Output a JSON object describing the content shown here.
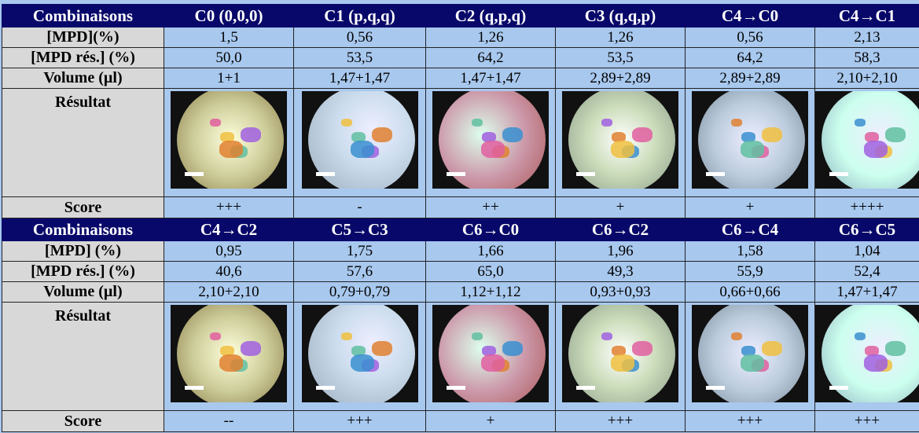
{
  "table": {
    "rows": [
      [
        "Combinaisons",
        "C0 (0,0,0)",
        "C1 (p,q,q)",
        "C2 (q,p,q)",
        "C3 (q,q,p)",
        "C4→C0",
        "C4→C1"
      ],
      [
        "[MPD](%)",
        "1,5",
        "0,56",
        "1,26",
        "1,26",
        "0,56",
        "2,13"
      ],
      [
        "[MPD rés.] (%)",
        "50,0",
        "53,5",
        "64,2",
        "53,5",
        "64,2",
        "58,3"
      ],
      [
        "Volume (µl)",
        "1+1",
        "1,47+1,47",
        "1,47+1,47",
        "2,89+2,89",
        "2,89+2,89",
        "2,10+2,10"
      ],
      [
        "Résultat"
      ],
      [
        "Score",
        "+++",
        "-",
        "++",
        "+",
        "+",
        "++++"
      ],
      [
        "Combinaisons",
        "C4→C2",
        "C5→C3",
        "C6→C0",
        "C6→C2",
        "C6→C4",
        "C6→C5"
      ],
      [
        "[MPD] (%)",
        "0,95",
        "1,75",
        "1,66",
        "1,96",
        "1,58",
        "1,04"
      ],
      [
        "[MPD rés.] (%)",
        "40,6",
        "57,6",
        "65,0",
        "49,3",
        "55,9",
        "52,4"
      ],
      [
        "Volume (µl)",
        "2,10+2,10",
        "0,79+0,79",
        "1,12+1,12",
        "0,93+0,93",
        "0,66+0,66",
        "1,47+1,47"
      ],
      [
        "Résultat"
      ],
      [
        "Score",
        "--",
        "+++",
        "+",
        "+++",
        "+++",
        "+++"
      ]
    ]
  }
}
